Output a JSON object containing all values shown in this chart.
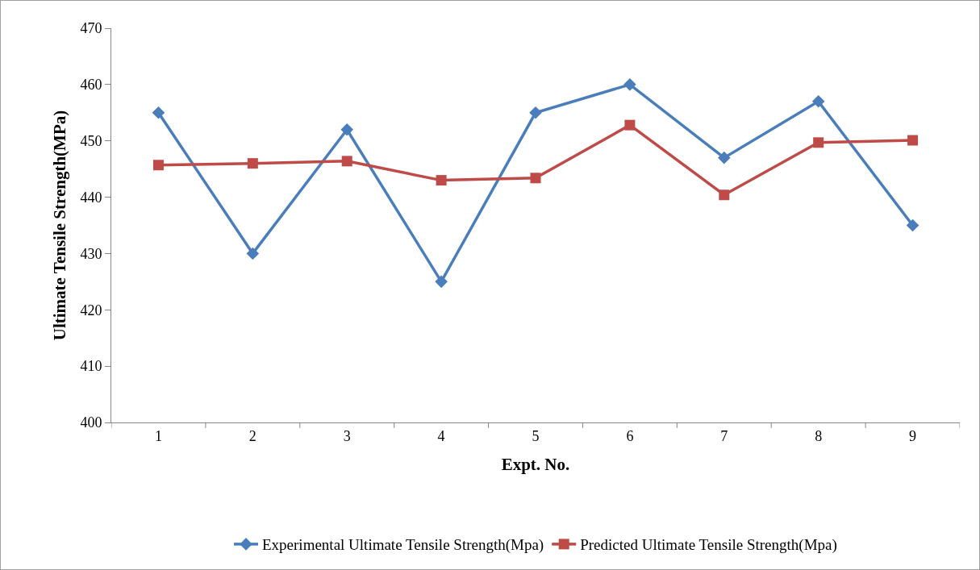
{
  "chart_data": {
    "type": "line",
    "xlabel": "Expt. No.",
    "ylabel": "Ultimate Tensile Strength(MPa)",
    "categories": [
      "1",
      "2",
      "3",
      "4",
      "5",
      "6",
      "7",
      "8",
      "9"
    ],
    "series": [
      {
        "name": "Experimental Ultimate Tensile Strength(Mpa)",
        "color": "#4a7ebb",
        "marker": "diamond",
        "values": [
          455,
          430,
          452,
          425,
          455,
          460,
          447,
          457,
          435
        ]
      },
      {
        "name": "Predicted Ultimate Tensile Strength(Mpa)",
        "color": "#be4b48",
        "marker": "square",
        "values": [
          445.7,
          446.0,
          446.4,
          443.0,
          443.4,
          452.8,
          440.4,
          449.7,
          450.1
        ]
      }
    ],
    "ylim": [
      400,
      470
    ],
    "yticks": [
      400,
      410,
      420,
      430,
      440,
      450,
      460,
      470
    ],
    "grid": false,
    "legend": "bottom",
    "line_style": "solid"
  }
}
